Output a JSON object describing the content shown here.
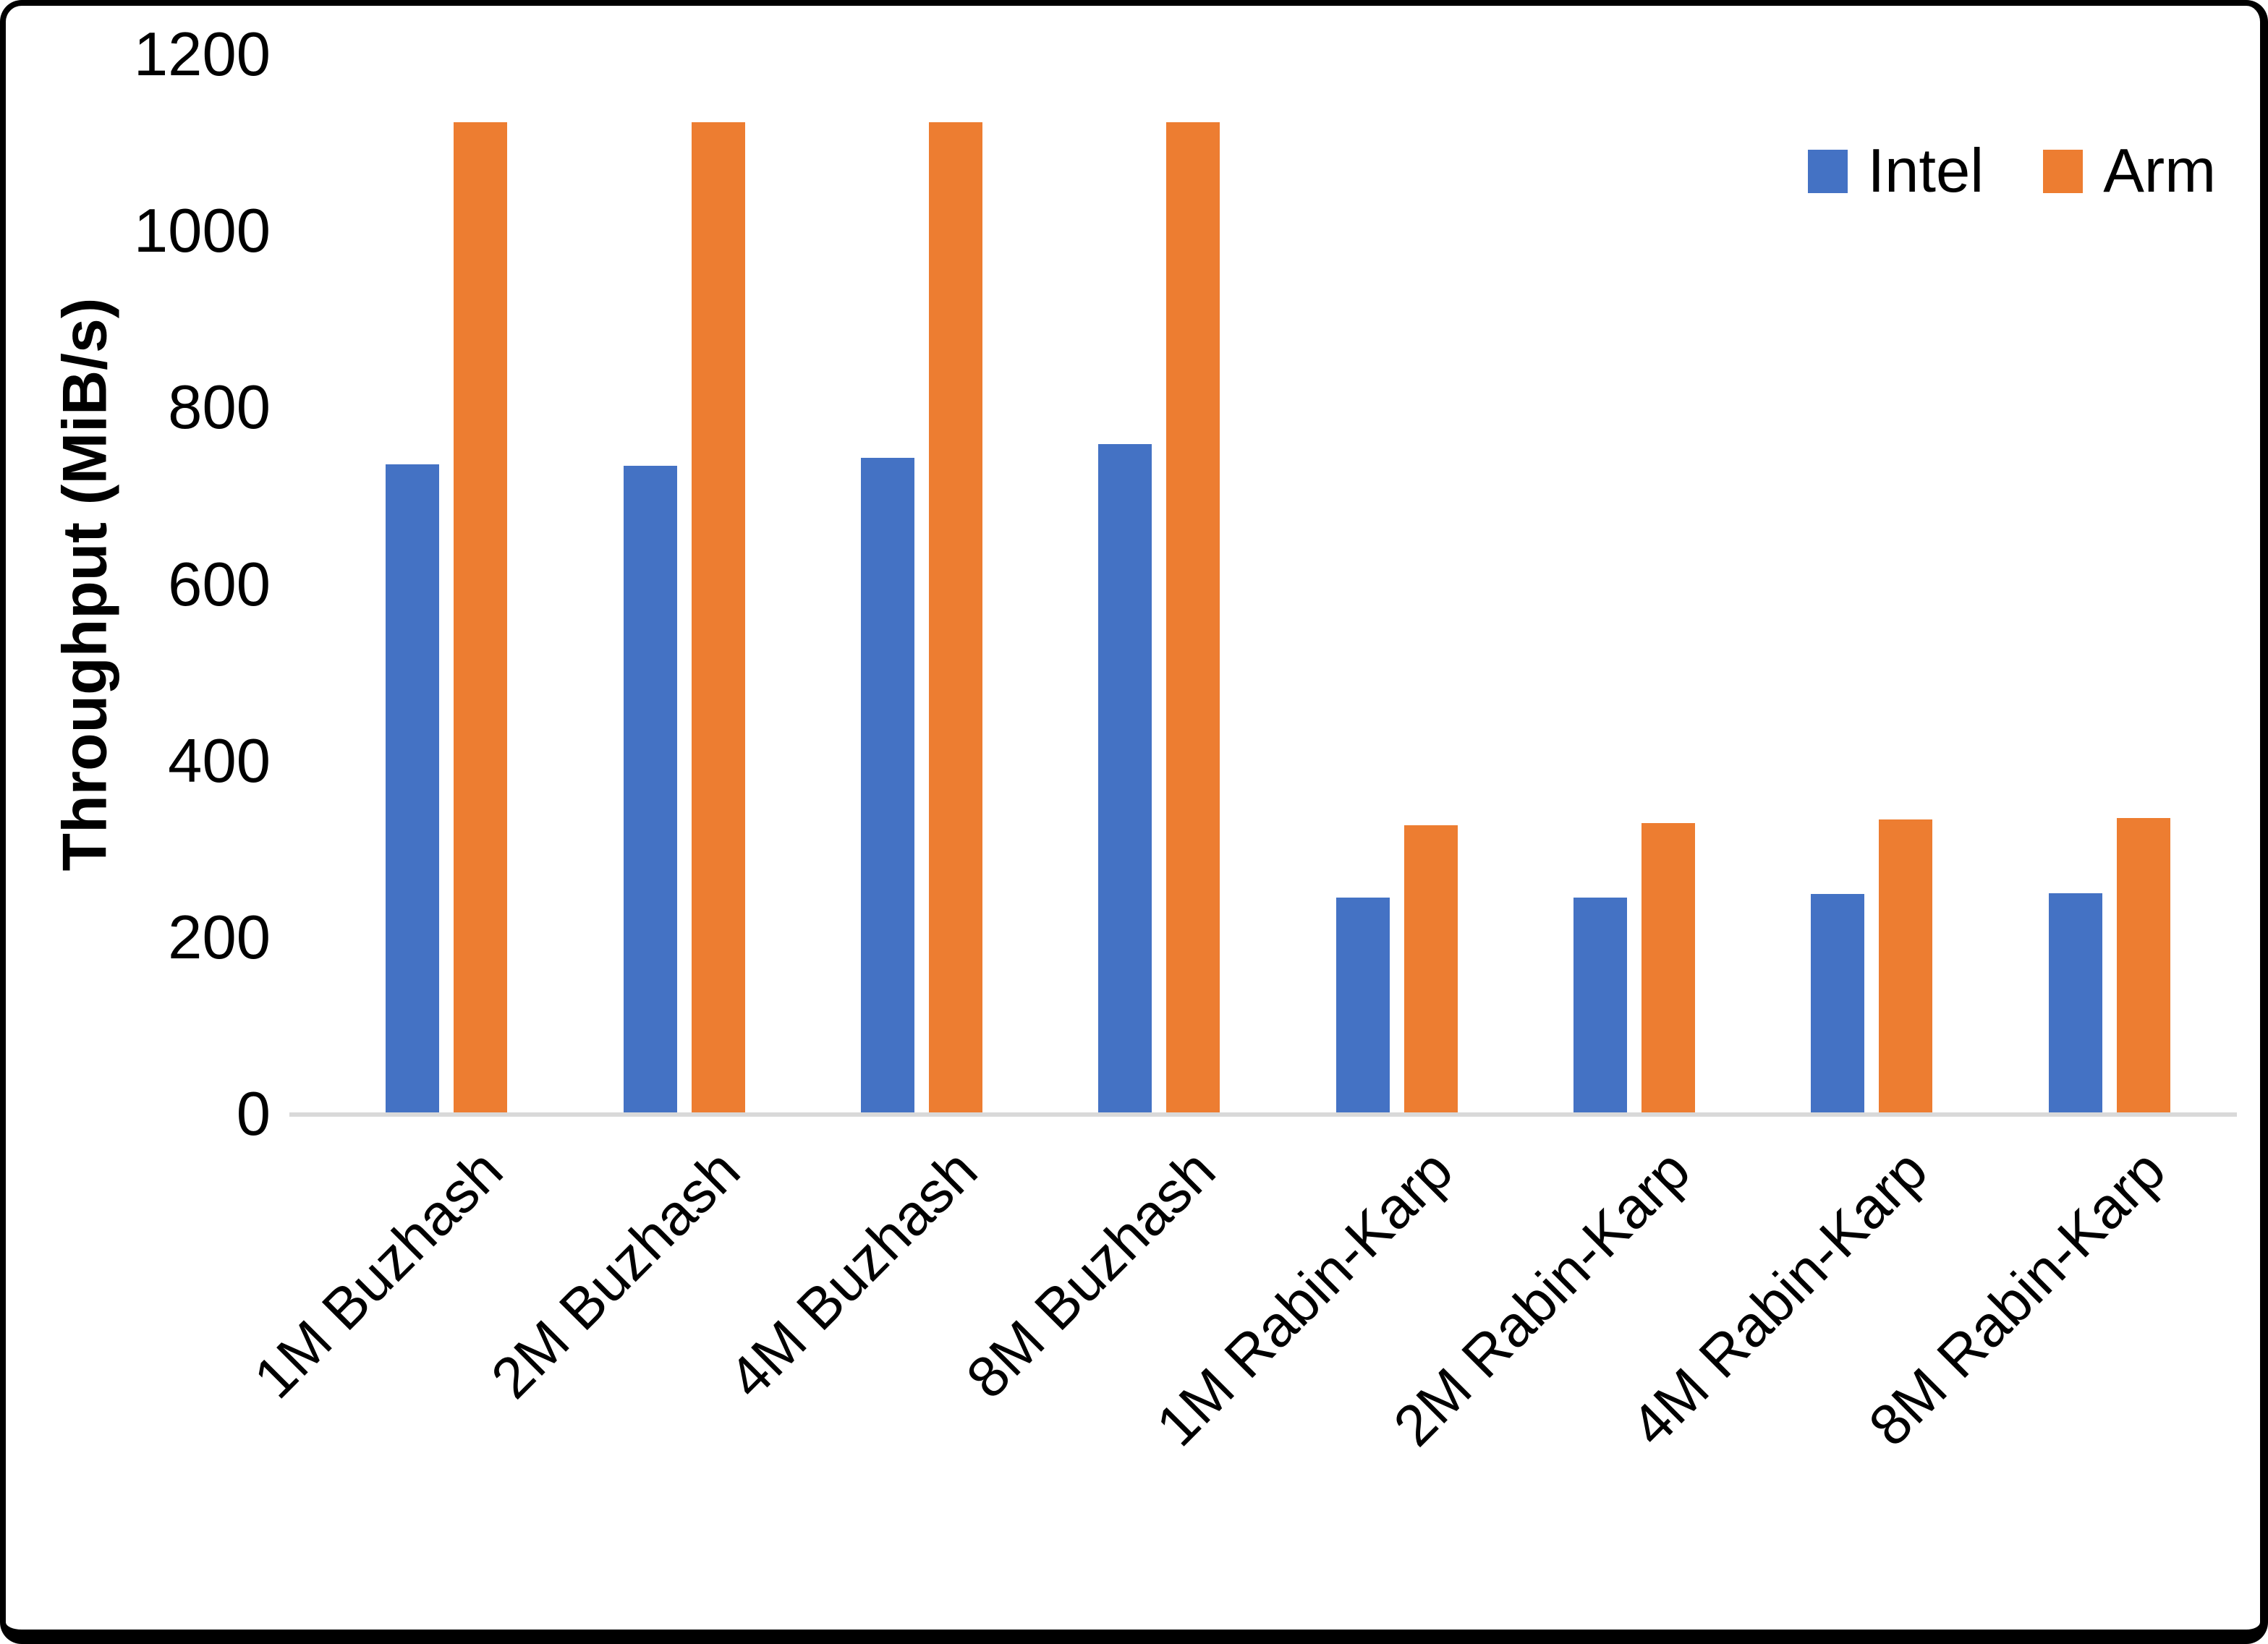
{
  "chart_data": {
    "type": "bar",
    "title": "",
    "xlabel": "",
    "ylabel": "Throughput (MiB/s)",
    "ylim": [
      0,
      1200
    ],
    "yticks": [
      0,
      200,
      400,
      600,
      800,
      1000,
      1200
    ],
    "grid": false,
    "legend_position": "top-right",
    "categories": [
      "1M Buzhash",
      "2M Buzhash",
      "4M Buzhash",
      "8M Buzhash",
      "1M Rabin-Karp",
      "2M Rabin-Karp",
      "4M Rabin-Karp",
      "8M Rabin-Karp"
    ],
    "series": [
      {
        "name": "Intel",
        "color": "#4472C4",
        "values": [
          736,
          735,
          744,
          759,
          246,
          246,
          250,
          251
        ]
      },
      {
        "name": "Arm",
        "color": "#ED7D31",
        "values": [
          1124,
          1124,
          1124,
          1124,
          328,
          330,
          334,
          336
        ]
      }
    ],
    "axis_line_color": "#D9D9D9"
  }
}
